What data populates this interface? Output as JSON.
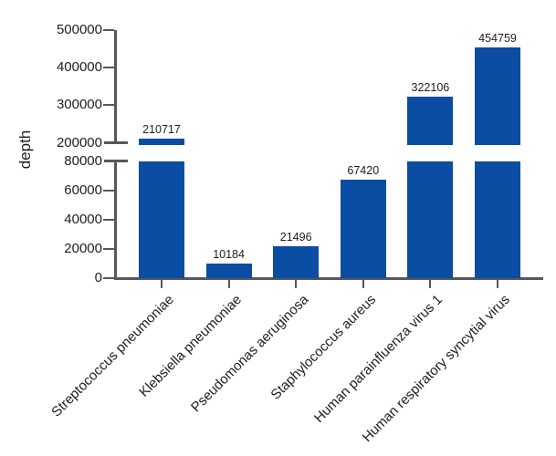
{
  "chart_data": {
    "type": "bar",
    "title": "",
    "xlabel": "",
    "ylabel": "depth",
    "categories": [
      "Streptococcus pneumoniae",
      "Klebsiella pneumoniae",
      "Pseudomonas aeruginosa",
      "Staphylococcus aureus",
      "Human parainfluenza virus 1",
      "Human respiratory syncytial virus"
    ],
    "values": [
      210717,
      10184,
      21496,
      67420,
      322106,
      454759
    ],
    "bar_labels": [
      "210717",
      "10184",
      "21496",
      "67420",
      "322106",
      "454759"
    ],
    "axis_break": {
      "lower": {
        "min": 0,
        "max": 80000,
        "ticks": [
          0,
          20000,
          40000,
          60000,
          80000
        ]
      },
      "upper": {
        "min": 200000,
        "max": 500000,
        "ticks": [
          200000,
          300000,
          400000,
          500000
        ]
      }
    },
    "grid": false,
    "legend": false,
    "colors": {
      "bar": "#0b4da2",
      "axis": "#58585a",
      "text": "#1d1d1f",
      "background": "#ffffff"
    }
  }
}
